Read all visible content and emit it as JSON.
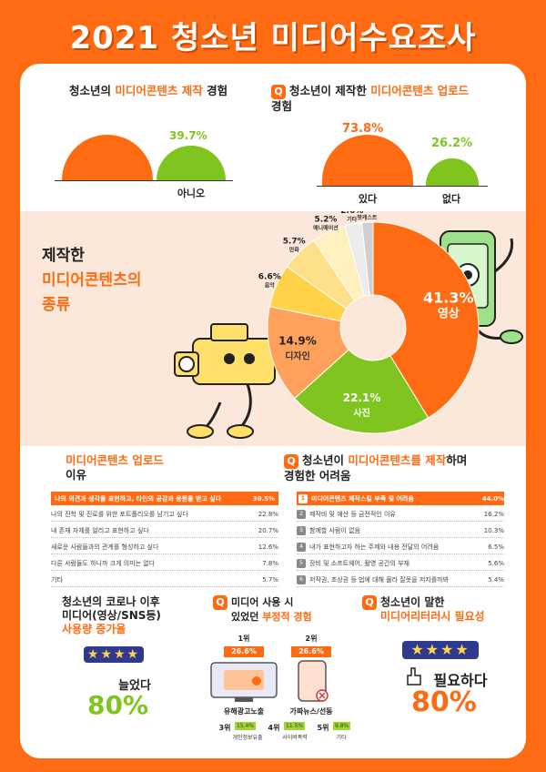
{
  "title": "2021 청소년 미디어수요조사",
  "production": {
    "title_pre": "청소년의 ",
    "title_hl": "미디어콘텐츠 제작",
    "title_post": " 경험",
    "yes_pct": "",
    "no_pct": "39.7%",
    "no_label": "아니오",
    "values": [
      60.3,
      39.7
    ]
  },
  "upload": {
    "q": "Q",
    "title_pre": "청소년이 제작한 ",
    "title_hl": "미디어콘텐츠 업로드",
    "title_line2": "경험",
    "yes_pct": "73.8%",
    "no_pct": "26.2%",
    "yes_label": "있다",
    "no_label": "없다",
    "values": [
      73.8,
      26.2
    ]
  },
  "types": {
    "title_l1": "제작한",
    "title_l2": "미디어콘텐츠의",
    "title_l3": "종류",
    "chart_data": {
      "type": "pie",
      "slices": [
        {
          "label": "영상",
          "value": 41.3,
          "text": "41.3%",
          "color": "#ff6b13"
        },
        {
          "label": "사진",
          "value": 22.1,
          "text": "22.1%",
          "color": "#7fc41f"
        },
        {
          "label": "디자인",
          "value": 14.9,
          "text": "14.9%",
          "color": "#ffa05c"
        },
        {
          "label": "음악",
          "value": 6.6,
          "text": "6.6%",
          "color": "#ffd24a"
        },
        {
          "label": "만화",
          "value": 5.7,
          "text": "5.7%",
          "color": "#ffe08a"
        },
        {
          "label": "애니메이션",
          "value": 5.2,
          "text": "5.2%",
          "color": "#fff0bf"
        },
        {
          "label": "기타",
          "value": 2.6,
          "text": "2.6%",
          "color": "#ececec"
        },
        {
          "label": "팟캐스트",
          "value": 1.7,
          "text": "1.7%",
          "color": "#cfcfcf"
        }
      ]
    }
  },
  "reasons": {
    "title_hl": "미디어콘텐츠 업로드",
    "title_line2": "이유",
    "rows": [
      {
        "text": "나의 의견과 생각을 표현하고, 타인의 공감과 응원을 받고 싶다",
        "value": "30.5%"
      },
      {
        "text": "나의 진학 및 진로를 위한 포트폴리오를 남기고 싶다",
        "value": "22.8%"
      },
      {
        "text": "내 존재 자체를 알리고 표현하고 싶다",
        "value": "20.7%"
      },
      {
        "text": "새로운 사람들과의 관계를 형성하고 싶다",
        "value": "12.6%"
      },
      {
        "text": "다른 사람들도 하니까 크게 의미는 없다",
        "value": "7.8%"
      },
      {
        "text": "기타",
        "value": "5.7%"
      }
    ]
  },
  "difficulties": {
    "q": "Q",
    "title_pre": "청소년이 ",
    "title_hl": "미디어콘텐츠를 제작",
    "title_post": "하며",
    "title_line2": "경험한 어려움",
    "rows": [
      {
        "n": "1",
        "text": "미디어콘텐츠 제작스킬 부족 및 어려움",
        "value": "44.0%"
      },
      {
        "n": "2",
        "text": "제작비 및 예산 등 금전적인 이유",
        "value": "16.2%"
      },
      {
        "n": "3",
        "text": "함께할 사람이 없음",
        "value": "10.3%"
      },
      {
        "n": "4",
        "text": "내가 표현하고자 하는 주제와 내용 전달의 어려움",
        "value": "6.5%"
      },
      {
        "n": "5",
        "text": "장비 및 소프트웨어, 촬영 공간의 부재",
        "value": "5.6%"
      },
      {
        "n": "6",
        "text": "저작권, 초상권 등 법에 대해 몰라 잘못을 저지를까봐",
        "value": "5.4%"
      }
    ]
  },
  "covid": {
    "title_l1": "청소년의 코로나 이후",
    "title_l2": "미디어(영상/SNS등)",
    "title_hl": "사용량 증가율",
    "stars": "★★★★",
    "answer": "늘었다",
    "pct": "80%"
  },
  "negative": {
    "q": "Q",
    "title_l1": "미디어 사용 시",
    "title_pre": "있었던 ",
    "title_hl": "부정적 경험",
    "rank1": "1위",
    "rank1_pct": "26.6%",
    "rank1_label": "유해광고노출",
    "rank2": "2위",
    "rank2_pct": "26.6%",
    "rank2_label": "가짜뉴스/선동",
    "rank3": "3위",
    "rank3_pct": "15.4%",
    "rank3_label": "개인정보유출",
    "rank4": "4위",
    "rank4_pct": "11.5%",
    "rank4_label": "사이버폭력",
    "rank5": "5위",
    "rank5_pct": "9.8%",
    "rank5_label": "기타"
  },
  "literacy": {
    "q": "Q",
    "title_l1": "청소년이 말한",
    "title_hl": "미디어리터러시 필요성",
    "stars": "★★★★",
    "answer": "필요하다",
    "pct": "80%"
  }
}
